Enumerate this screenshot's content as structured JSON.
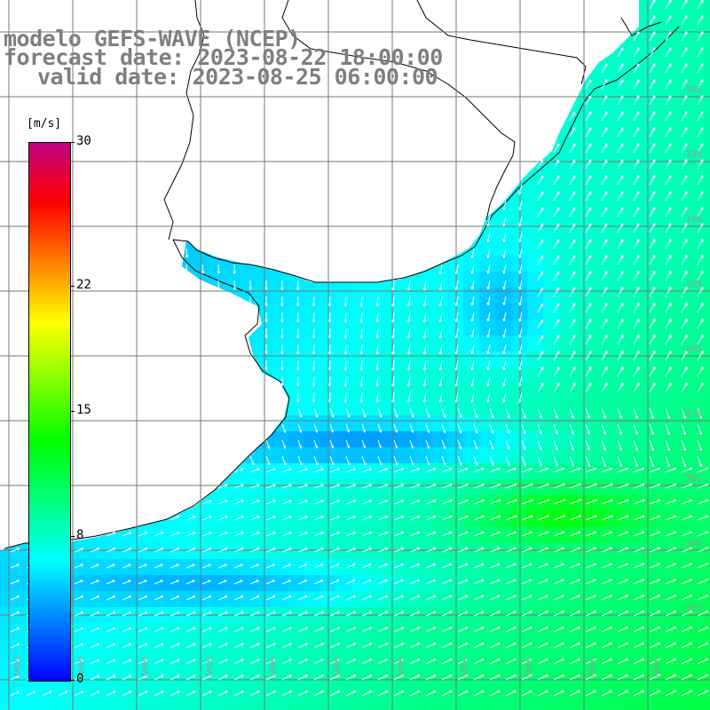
{
  "title": {
    "line1": "modelo GEFS-WAVE (NCEP)",
    "line2": "forecast date: 2023-08-22 18:00:00",
    "line3": "valid date: 2023-08-25 06:00:00"
  },
  "colorbar": {
    "unit": "[m/s]",
    "ticks": [
      "30",
      "22",
      "15",
      "8",
      "0"
    ],
    "tick_values": [
      30,
      22,
      15,
      8,
      0
    ],
    "range": [
      0,
      30
    ],
    "colors": [
      "#0000ff",
      "#0080ff",
      "#00ffff",
      "#00ff80",
      "#00ff00",
      "#80ff00",
      "#ffff00",
      "#ff8000",
      "#ff0000",
      "#c00080"
    ]
  },
  "map": {
    "variable": "wind speed and direction",
    "lat_labels": [
      "32S",
      "33S",
      "34S",
      "35S",
      "36S",
      "37S",
      "38S",
      "39S",
      "40S"
    ],
    "lon_labels": [
      "60W",
      "59W",
      "58W",
      "57W",
      "56W",
      "55W",
      "54W",
      "53W",
      "52W",
      "51W",
      "50W"
    ],
    "land_color": "#ffffff",
    "grid_color": "#777777",
    "arrow_color": "#ffffff"
  }
}
